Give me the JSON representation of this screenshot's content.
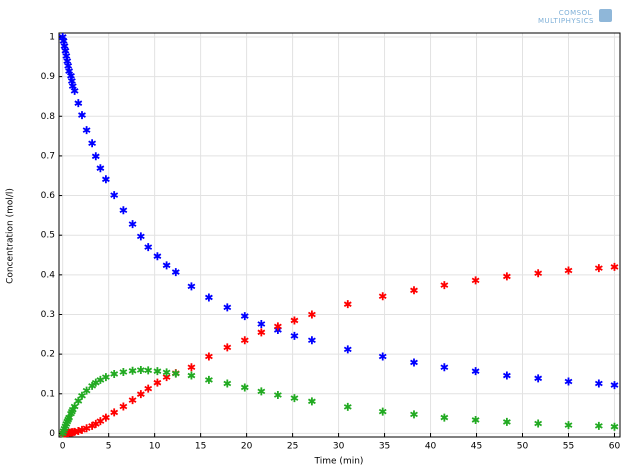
{
  "logo": [
    "COMSOL",
    "MULTIPHYSICS"
  ],
  "chart_data": {
    "type": "scatter",
    "xlabel": "Time (min)",
    "ylabel": "Concentration (mol/l)",
    "x": [
      0,
      0.1,
      0.2,
      0.3,
      0.4,
      0.5,
      0.6,
      0.7,
      0.9,
      1.0,
      1.1,
      1.3,
      1.7,
      2.1,
      2.6,
      3.2,
      3.6,
      4.1,
      4.7,
      5.6,
      6.6,
      7.6,
      8.5,
      9.3,
      10.3,
      11.3,
      12.3,
      14,
      15.9,
      17.9,
      19.8,
      21.6,
      23.4,
      25.2,
      27.1,
      31,
      34.8,
      38.2,
      41.5,
      44.9,
      48.3,
      51.7,
      55,
      58.3,
      60
    ],
    "series": [
      {
        "color": "#0000ff",
        "values": [
          1.0,
          0.99,
          0.977,
          0.965,
          0.952,
          0.939,
          0.927,
          0.914,
          0.902,
          0.889,
          0.876,
          0.864,
          0.833,
          0.803,
          0.765,
          0.732,
          0.699,
          0.669,
          0.641,
          0.601,
          0.563,
          0.528,
          0.497,
          0.47,
          0.447,
          0.424,
          0.407,
          0.371,
          0.343,
          0.318,
          0.296,
          0.276,
          0.261,
          0.246,
          0.235,
          0.212,
          0.194,
          0.179,
          0.167,
          0.157,
          0.146,
          0.139,
          0.131,
          0.126,
          0.122
        ]
      },
      {
        "color": "#ff0000",
        "values": [
          0,
          0,
          0,
          0,
          0.001,
          0.001,
          0.001,
          0.002,
          0.002,
          0.003,
          0.003,
          0.004,
          0.006,
          0.009,
          0.013,
          0.019,
          0.024,
          0.031,
          0.04,
          0.053,
          0.068,
          0.084,
          0.099,
          0.113,
          0.128,
          0.142,
          0.152,
          0.167,
          0.194,
          0.217,
          0.235,
          0.255,
          0.27,
          0.285,
          0.3,
          0.326,
          0.346,
          0.361,
          0.374,
          0.386,
          0.396,
          0.404,
          0.411,
          0.417,
          0.42
        ]
      },
      {
        "color": "#22aa22",
        "values": [
          0,
          0.006,
          0.012,
          0.018,
          0.024,
          0.03,
          0.035,
          0.04,
          0.05,
          0.055,
          0.06,
          0.068,
          0.082,
          0.095,
          0.108,
          0.12,
          0.128,
          0.135,
          0.142,
          0.15,
          0.155,
          0.158,
          0.16,
          0.159,
          0.157,
          0.154,
          0.151,
          0.146,
          0.135,
          0.126,
          0.116,
          0.106,
          0.097,
          0.089,
          0.081,
          0.067,
          0.055,
          0.048,
          0.04,
          0.034,
          0.029,
          0.025,
          0.021,
          0.019,
          0.017
        ]
      }
    ],
    "xlim": [
      -0.4,
      60.6
    ],
    "xticks": [
      0,
      5,
      10,
      15,
      20,
      25,
      30,
      35,
      40,
      45,
      50,
      55,
      60
    ],
    "ylim": [
      -0.009,
      1.01
    ],
    "yticks": [
      0,
      0.1,
      0.2,
      0.3,
      0.4,
      0.5,
      0.6,
      0.7,
      0.8,
      0.9,
      1
    ],
    "grid": true
  }
}
